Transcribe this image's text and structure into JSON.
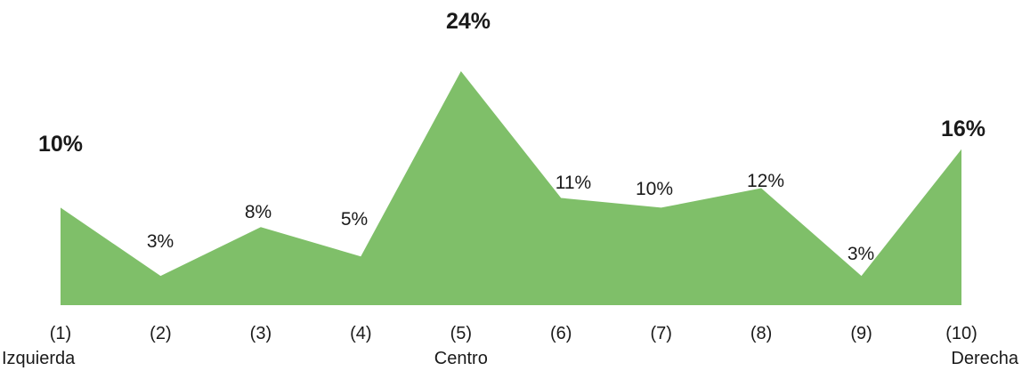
{
  "chart_data": {
    "type": "area",
    "categories": [
      "(1)",
      "(2)",
      "(3)",
      "(4)",
      "(5)",
      "(6)",
      "(7)",
      "(8)",
      "(9)",
      "(10)"
    ],
    "sublabels": [
      "Izquierda",
      "",
      "",
      "",
      "Centro",
      "",
      "",
      "",
      "",
      "Derecha"
    ],
    "values": [
      10,
      3,
      8,
      5,
      24,
      11,
      10,
      12,
      3,
      16
    ],
    "data_labels": [
      "10%",
      "3%",
      "8%",
      "5%",
      "24%",
      "11%",
      "10%",
      "12%",
      "3%",
      "16%"
    ],
    "bold_labels": [
      true,
      false,
      false,
      false,
      true,
      false,
      false,
      false,
      false,
      true
    ],
    "ylim": [
      0,
      26
    ],
    "grid": false,
    "legend": "none",
    "fill_color": "#7fbf69"
  }
}
